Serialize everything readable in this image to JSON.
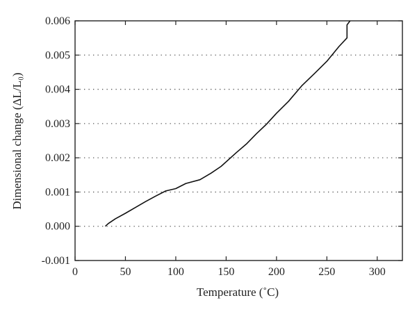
{
  "chart_data": {
    "type": "line",
    "title": "",
    "xlabel": "Temperature (˚C)",
    "ylabel": "Dimensional change (ΔL/L₀)",
    "xlim": [
      0,
      325
    ],
    "ylim": [
      -0.001,
      0.006
    ],
    "x_ticks": [
      0,
      50,
      100,
      150,
      200,
      250,
      300
    ],
    "y_ticks": [
      -0.001,
      0.0,
      0.001,
      0.002,
      0.003,
      0.004,
      0.005,
      0.006
    ],
    "x_tick_labels": [
      "0",
      "50",
      "100",
      "150",
      "200",
      "250",
      "300"
    ],
    "y_tick_labels": [
      "-0.001",
      "0.000",
      "0.001",
      "0.002",
      "0.003",
      "0.004",
      "0.005",
      "0.006"
    ],
    "grid": "horizontal dotted",
    "series": [
      {
        "color": "#111111",
        "x": [
          30,
          33,
          40,
          50,
          60,
          70,
          80,
          90,
          100,
          110,
          124,
          135,
          145,
          160,
          170,
          180,
          190,
          200,
          212,
          225,
          238,
          250,
          262,
          270,
          270,
          272,
          273
        ],
        "y": [
          0.0,
          8e-05,
          0.00022,
          0.00038,
          0.00055,
          0.00072,
          0.00088,
          0.00103,
          0.0011,
          0.00125,
          0.00136,
          0.00155,
          0.00175,
          0.00215,
          0.0024,
          0.0027,
          0.00298,
          0.0033,
          0.00365,
          0.0041,
          0.00447,
          0.00482,
          0.00525,
          0.0055,
          0.00588,
          0.00596,
          0.006
        ]
      }
    ]
  }
}
